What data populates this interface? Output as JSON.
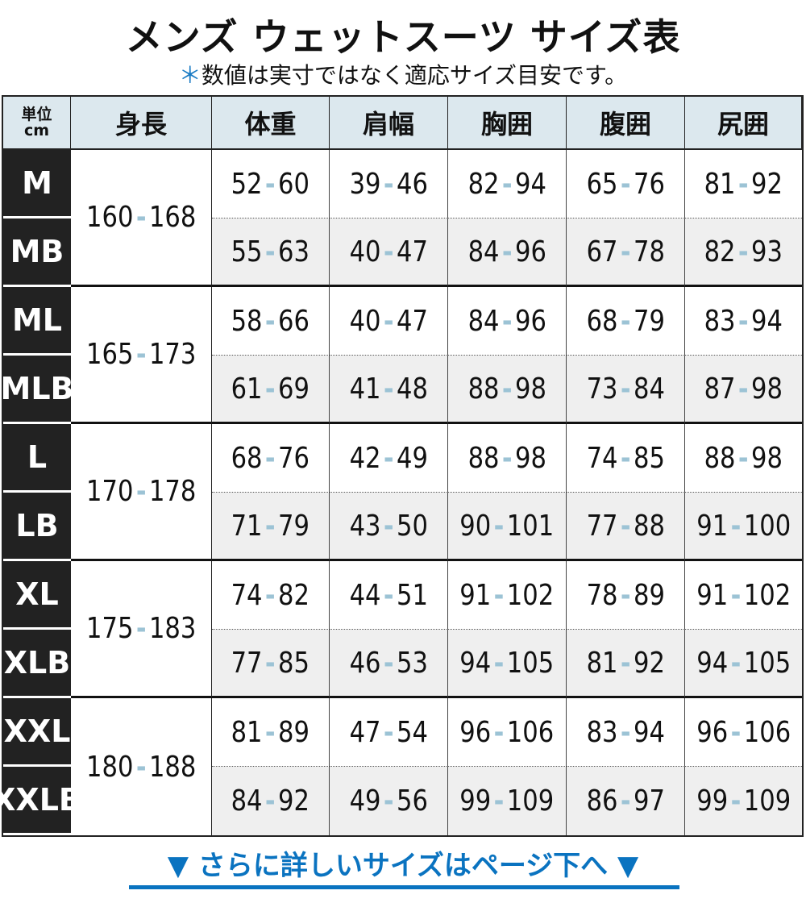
{
  "title": "メンズ ウェットスーツ サイズ表",
  "subtitle": {
    "mark": "＊",
    "text": "数値は実寸ではなく適応サイズ目安です。"
  },
  "table": {
    "unit_label": [
      "単位",
      "cm"
    ],
    "headers": [
      "身長",
      "体重",
      "肩幅",
      "胸囲",
      "腹囲",
      "尻囲"
    ],
    "groups": [
      {
        "height": [
          "160",
          "168"
        ],
        "rows": [
          {
            "size": "M",
            "values": [
              [
                "52",
                "60"
              ],
              [
                "39",
                "46"
              ],
              [
                "82",
                "94"
              ],
              [
                "65",
                "76"
              ],
              [
                "81",
                "92"
              ]
            ]
          },
          {
            "size": "MB",
            "values": [
              [
                "55",
                "63"
              ],
              [
                "40",
                "47"
              ],
              [
                "84",
                "96"
              ],
              [
                "67",
                "78"
              ],
              [
                "82",
                "93"
              ]
            ]
          }
        ]
      },
      {
        "height": [
          "165",
          "173"
        ],
        "rows": [
          {
            "size": "ML",
            "values": [
              [
                "58",
                "66"
              ],
              [
                "40",
                "47"
              ],
              [
                "84",
                "96"
              ],
              [
                "68",
                "79"
              ],
              [
                "83",
                "94"
              ]
            ]
          },
          {
            "size": "MLB",
            "values": [
              [
                "61",
                "69"
              ],
              [
                "41",
                "48"
              ],
              [
                "88",
                "98"
              ],
              [
                "73",
                "84"
              ],
              [
                "87",
                "98"
              ]
            ]
          }
        ]
      },
      {
        "height": [
          "170",
          "178"
        ],
        "rows": [
          {
            "size": "L",
            "values": [
              [
                "68",
                "76"
              ],
              [
                "42",
                "49"
              ],
              [
                "88",
                "98"
              ],
              [
                "74",
                "85"
              ],
              [
                "88",
                "98"
              ]
            ]
          },
          {
            "size": "LB",
            "values": [
              [
                "71",
                "79"
              ],
              [
                "43",
                "50"
              ],
              [
                "90",
                "101"
              ],
              [
                "77",
                "88"
              ],
              [
                "91",
                "100"
              ]
            ]
          }
        ]
      },
      {
        "height": [
          "175",
          "183"
        ],
        "rows": [
          {
            "size": "XL",
            "values": [
              [
                "74",
                "82"
              ],
              [
                "44",
                "51"
              ],
              [
                "91",
                "102"
              ],
              [
                "78",
                "89"
              ],
              [
                "91",
                "102"
              ]
            ]
          },
          {
            "size": "XLB",
            "values": [
              [
                "77",
                "85"
              ],
              [
                "46",
                "53"
              ],
              [
                "94",
                "105"
              ],
              [
                "81",
                "92"
              ],
              [
                "94",
                "105"
              ]
            ]
          }
        ]
      },
      {
        "height": [
          "180",
          "188"
        ],
        "rows": [
          {
            "size": "XXL",
            "values": [
              [
                "81",
                "89"
              ],
              [
                "47",
                "54"
              ],
              [
                "96",
                "106"
              ],
              [
                "83",
                "94"
              ],
              [
                "96",
                "106"
              ]
            ]
          },
          {
            "size": "XXLB",
            "values": [
              [
                "84",
                "92"
              ],
              [
                "49",
                "56"
              ],
              [
                "99",
                "109"
              ],
              [
                "86",
                "97"
              ],
              [
                "99",
                "109"
              ]
            ]
          }
        ]
      }
    ]
  },
  "footer_link": {
    "arrow": "▼",
    "text": "さらに詳しいサイズはページ下へ"
  },
  "colors": {
    "header_bg": "#dce8ee",
    "size_bg": "#222222",
    "dash": "#9cc3d5",
    "link": "#0a73c0",
    "alt_row": "#efefef"
  }
}
